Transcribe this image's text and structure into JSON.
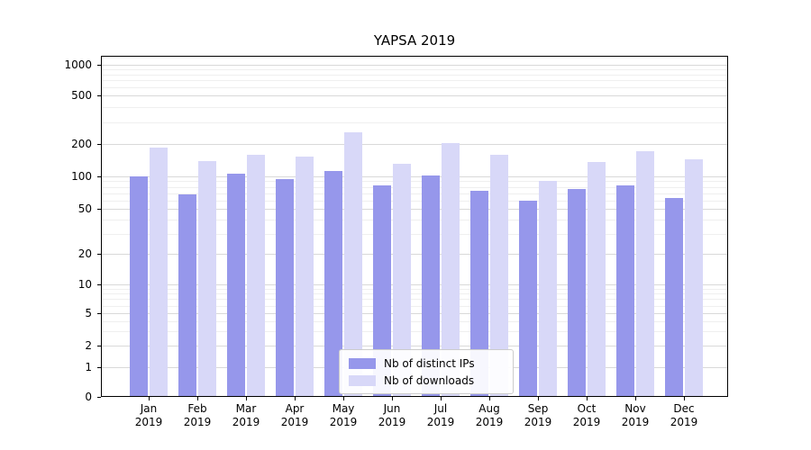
{
  "chart_data": {
    "type": "bar",
    "title": "YAPSA 2019",
    "categories": [
      "Jan",
      "Feb",
      "Mar",
      "Apr",
      "May",
      "Jun",
      "Jul",
      "Aug",
      "Sep",
      "Oct",
      "Nov",
      "Dec"
    ],
    "year_label": "2019",
    "series": [
      {
        "name": "Nb of distinct IPs",
        "color": "#9697eb",
        "values": [
          100,
          68,
          105,
          95,
          112,
          82,
          102,
          73,
          60,
          76,
          83,
          63
        ]
      },
      {
        "name": "Nb of downloads",
        "color": "#d8d8f8",
        "values": [
          185,
          140,
          160,
          152,
          250,
          130,
          205,
          160,
          90,
          135,
          170,
          145
        ]
      }
    ],
    "yticks": [
      0,
      1,
      2,
      5,
      10,
      20,
      50,
      100,
      200,
      500,
      1000
    ],
    "minor_yticks": [
      3,
      4,
      6,
      7,
      8,
      9,
      30,
      40,
      60,
      70,
      80,
      90,
      300,
      400,
      600,
      700,
      800,
      900
    ],
    "yscale": "log",
    "ylim": [
      0,
      1200
    ],
    "grid": true,
    "legend": {
      "position": "lower center",
      "labels": [
        "Nb of distinct IPs",
        "Nb of downloads"
      ]
    }
  }
}
